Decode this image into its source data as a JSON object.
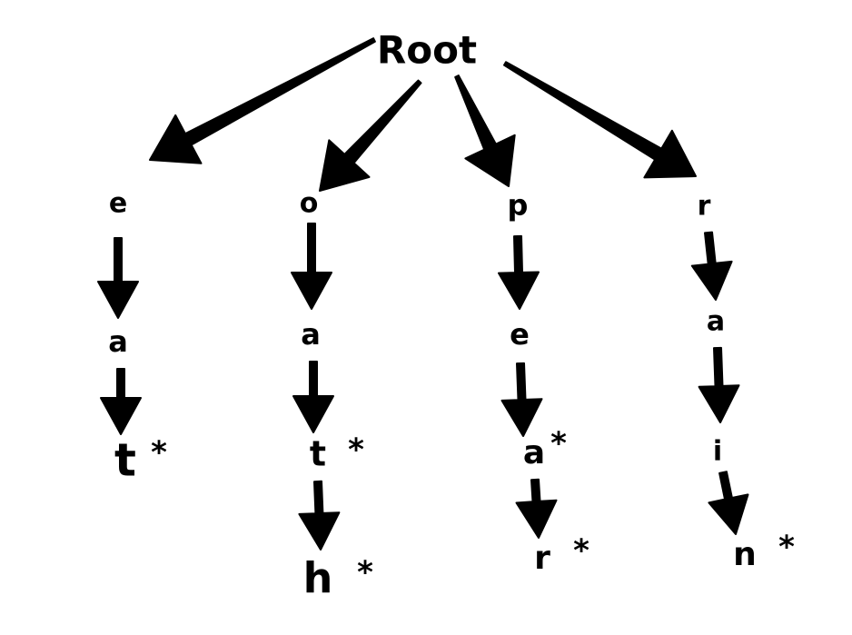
{
  "root": {
    "label": "Root"
  },
  "branches": [
    {
      "nodes": [
        "e",
        "a",
        "t"
      ],
      "end_markers": [
        null,
        null,
        "*"
      ]
    },
    {
      "nodes": [
        "o",
        "a",
        "t",
        "h"
      ],
      "end_markers": [
        null,
        null,
        "*",
        "*"
      ]
    },
    {
      "nodes": [
        "p",
        "e",
        "a",
        "r"
      ],
      "end_markers": [
        null,
        null,
        "*",
        "*"
      ]
    },
    {
      "nodes": [
        "r",
        "a",
        "i",
        "n"
      ],
      "end_markers": [
        null,
        null,
        null,
        "*"
      ]
    }
  ],
  "colors": {
    "stroke": "#000000",
    "background": "#ffffff"
  }
}
